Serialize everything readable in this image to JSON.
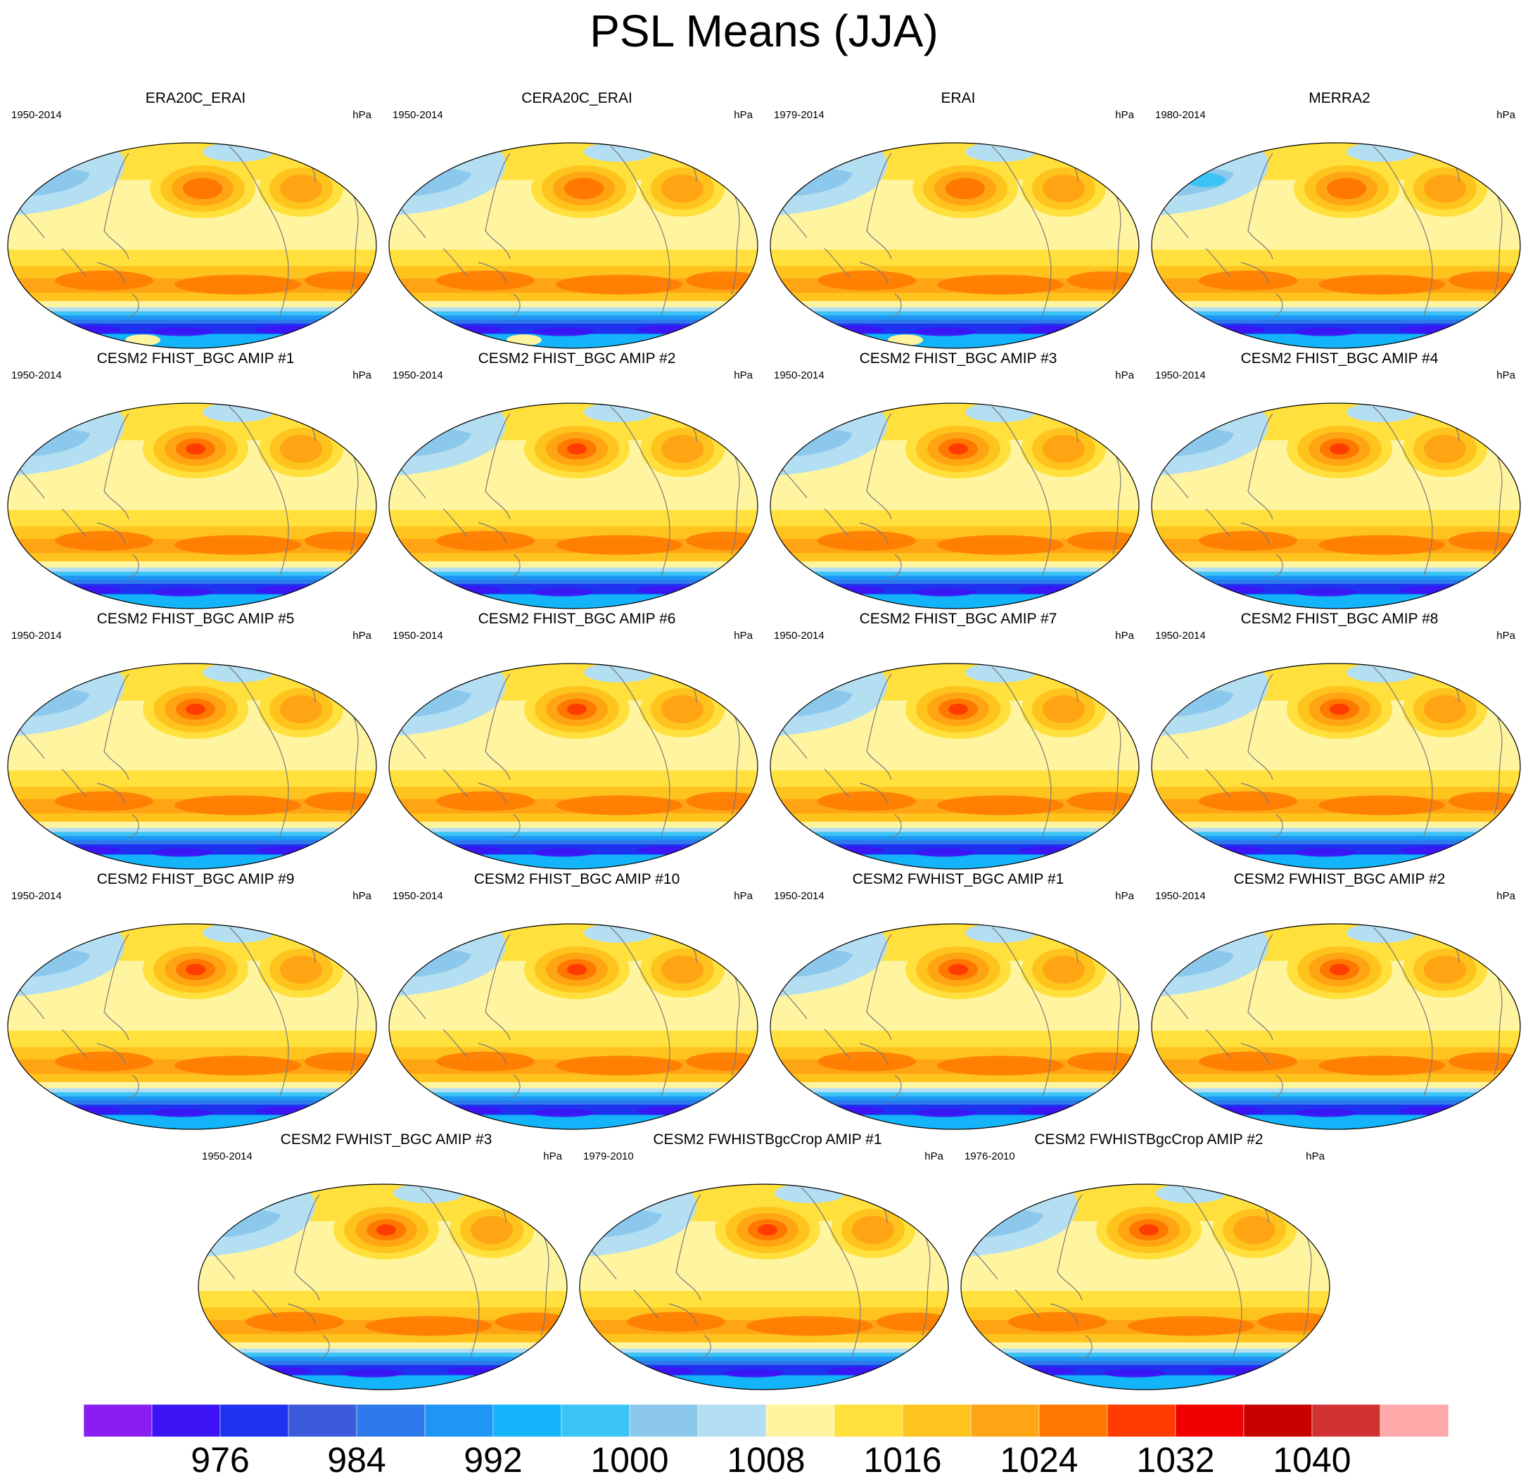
{
  "title": "PSL Means (JJA)",
  "chart_data": {
    "type": "heatmap",
    "title": "PSL Means (JJA)",
    "projection": "Robinson (global, centered on Pacific)",
    "units": "hPa",
    "panels": [
      {
        "title": "ERA20C_ERAI",
        "period": "1950-2014",
        "units": "hPa",
        "variant": "obs_a"
      },
      {
        "title": "CERA20C_ERAI",
        "period": "1950-2014",
        "units": "hPa",
        "variant": "obs_a"
      },
      {
        "title": "ERAI",
        "period": "1979-2014",
        "units": "hPa",
        "variant": "obs_a"
      },
      {
        "title": "MERRA2",
        "period": "1980-2014",
        "units": "hPa",
        "variant": "obs_b"
      },
      {
        "title": "CESM2 FHIST_BGC AMIP #1",
        "period": "1950-2014",
        "units": "hPa",
        "variant": "model"
      },
      {
        "title": "CESM2 FHIST_BGC AMIP #2",
        "period": "1950-2014",
        "units": "hPa",
        "variant": "model"
      },
      {
        "title": "CESM2 FHIST_BGC AMIP #3",
        "period": "1950-2014",
        "units": "hPa",
        "variant": "model"
      },
      {
        "title": "CESM2 FHIST_BGC AMIP #4",
        "period": "1950-2014",
        "units": "hPa",
        "variant": "model"
      },
      {
        "title": "CESM2 FHIST_BGC AMIP #5",
        "period": "1950-2014",
        "units": "hPa",
        "variant": "model"
      },
      {
        "title": "CESM2 FHIST_BGC AMIP #6",
        "period": "1950-2014",
        "units": "hPa",
        "variant": "model"
      },
      {
        "title": "CESM2 FHIST_BGC AMIP #7",
        "period": "1950-2014",
        "units": "hPa",
        "variant": "model"
      },
      {
        "title": "CESM2 FHIST_BGC AMIP #8",
        "period": "1950-2014",
        "units": "hPa",
        "variant": "model"
      },
      {
        "title": "CESM2 FHIST_BGC AMIP #9",
        "period": "1950-2014",
        "units": "hPa",
        "variant": "model"
      },
      {
        "title": "CESM2 FHIST_BGC AMIP #10",
        "period": "1950-2014",
        "units": "hPa",
        "variant": "model"
      },
      {
        "title": "CESM2 FWHIST_BGC AMIP #1",
        "period": "1950-2014",
        "units": "hPa",
        "variant": "model"
      },
      {
        "title": "CESM2 FWHIST_BGC AMIP #2",
        "period": "1950-2014",
        "units": "hPa",
        "variant": "model"
      },
      {
        "title": "CESM2 FWHIST_BGC AMIP #3",
        "period": "1950-2014",
        "units": "hPa",
        "variant": "model"
      },
      {
        "title": "CESM2 FWHISTBgcCrop AMIP #1",
        "period": "1979-2010",
        "units": "hPa",
        "variant": "model"
      },
      {
        "title": "CESM2 FWHISTBgcCrop AMIP #2",
        "period": "1976-2010",
        "units": "hPa",
        "variant": "model"
      }
    ],
    "colorbar": {
      "levels": [
        972,
        976,
        980,
        984,
        988,
        992,
        996,
        1000,
        1004,
        1008,
        1012,
        1016,
        1020,
        1024,
        1028,
        1032,
        1036,
        1040,
        1044
      ],
      "tick_labels": [
        "976",
        "984",
        "992",
        "1000",
        "1008",
        "1016",
        "1024",
        "1032",
        "1040"
      ],
      "tick_boundary_index": [
        1,
        3,
        5,
        7,
        9,
        11,
        13,
        15,
        17
      ],
      "colors": [
        "#8a1ef0",
        "#3c14f5",
        "#1e32f0",
        "#3c5adc",
        "#2d78eb",
        "#1e96f5",
        "#14b4fa",
        "#3cc3f5",
        "#8cc8eb",
        "#b4def2",
        "#fff5a0",
        "#ffe03c",
        "#ffc31e",
        "#ffa514",
        "#ff7800",
        "#ff3c00",
        "#f00000",
        "#c80000",
        "#d23232",
        "#ffaaaa"
      ]
    }
  }
}
